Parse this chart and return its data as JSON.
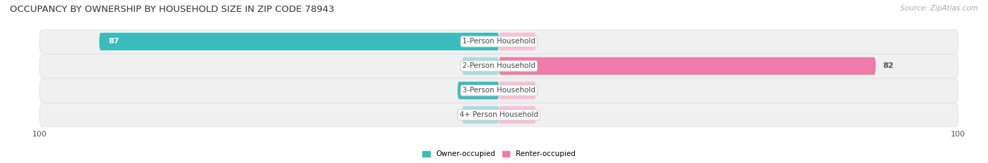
{
  "title": "OCCUPANCY BY OWNERSHIP BY HOUSEHOLD SIZE IN ZIP CODE 78943",
  "source": "Source: ZipAtlas.com",
  "categories": [
    "1-Person Household",
    "2-Person Household",
    "3-Person Household",
    "4+ Person Household"
  ],
  "owner_values": [
    87,
    0,
    9,
    0
  ],
  "renter_values": [
    0,
    82,
    0,
    0
  ],
  "owner_color": "#3bbcbc",
  "renter_color": "#f07aaa",
  "owner_color_light": "#a8dede",
  "renter_color_light": "#f9c0d5",
  "row_bg_color": "#f0f0f0",
  "row_line_color": "#e0e0e0",
  "x_max": 100,
  "legend_owner": "Owner-occupied",
  "legend_renter": "Renter-occupied",
  "title_fontsize": 9.5,
  "source_fontsize": 7.5,
  "axis_fontsize": 8,
  "label_fontsize": 8,
  "cat_fontsize": 7.5,
  "value_inside_color": "#ffffff",
  "value_outside_color": "#555555"
}
